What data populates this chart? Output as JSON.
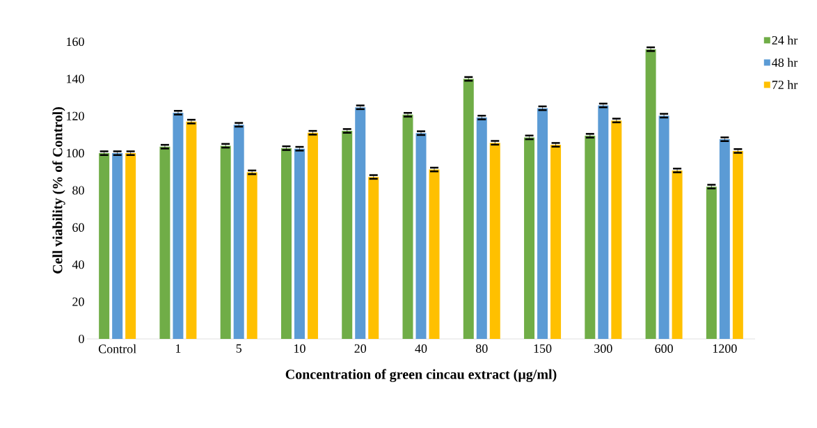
{
  "chart_data": {
    "type": "bar",
    "xlabel": "Concentration of green cincau extract (µg/ml)",
    "ylabel": "Cell viability (% of Control)",
    "categories": [
      "Control",
      "1",
      "5",
      "10",
      "20",
      "40",
      "80",
      "150",
      "300",
      "600",
      "1200"
    ],
    "series": [
      {
        "name": "24 hr",
        "color": "#70ad47",
        "values": [
          100,
          103.5,
          104,
          102.7,
          112,
          120.7,
          140,
          108.5,
          109.4,
          156,
          82
        ],
        "errors": [
          1,
          1,
          1,
          1,
          1,
          1,
          1,
          1,
          1,
          1,
          1
        ]
      },
      {
        "name": "48 hr",
        "color": "#5b9bd5",
        "values": [
          100,
          121.8,
          115.3,
          102.4,
          124.7,
          110.8,
          119.2,
          124.2,
          125.7,
          120.2,
          107.5
        ],
        "errors": [
          1,
          1,
          1,
          1,
          1,
          1,
          1,
          1,
          1,
          1,
          1
        ]
      },
      {
        "name": "72 hr",
        "color": "#ffc000",
        "values": [
          100,
          117,
          89.7,
          111,
          87.2,
          91.2,
          105.6,
          104.5,
          117.6,
          90.7,
          101.2
        ],
        "errors": [
          1,
          1,
          1,
          1,
          1,
          1,
          1,
          1,
          1,
          1,
          1
        ]
      }
    ],
    "ylim": [
      0,
      160
    ],
    "yticks": [
      0,
      20,
      40,
      60,
      80,
      100,
      120,
      140,
      160
    ],
    "legend": "top right"
  }
}
